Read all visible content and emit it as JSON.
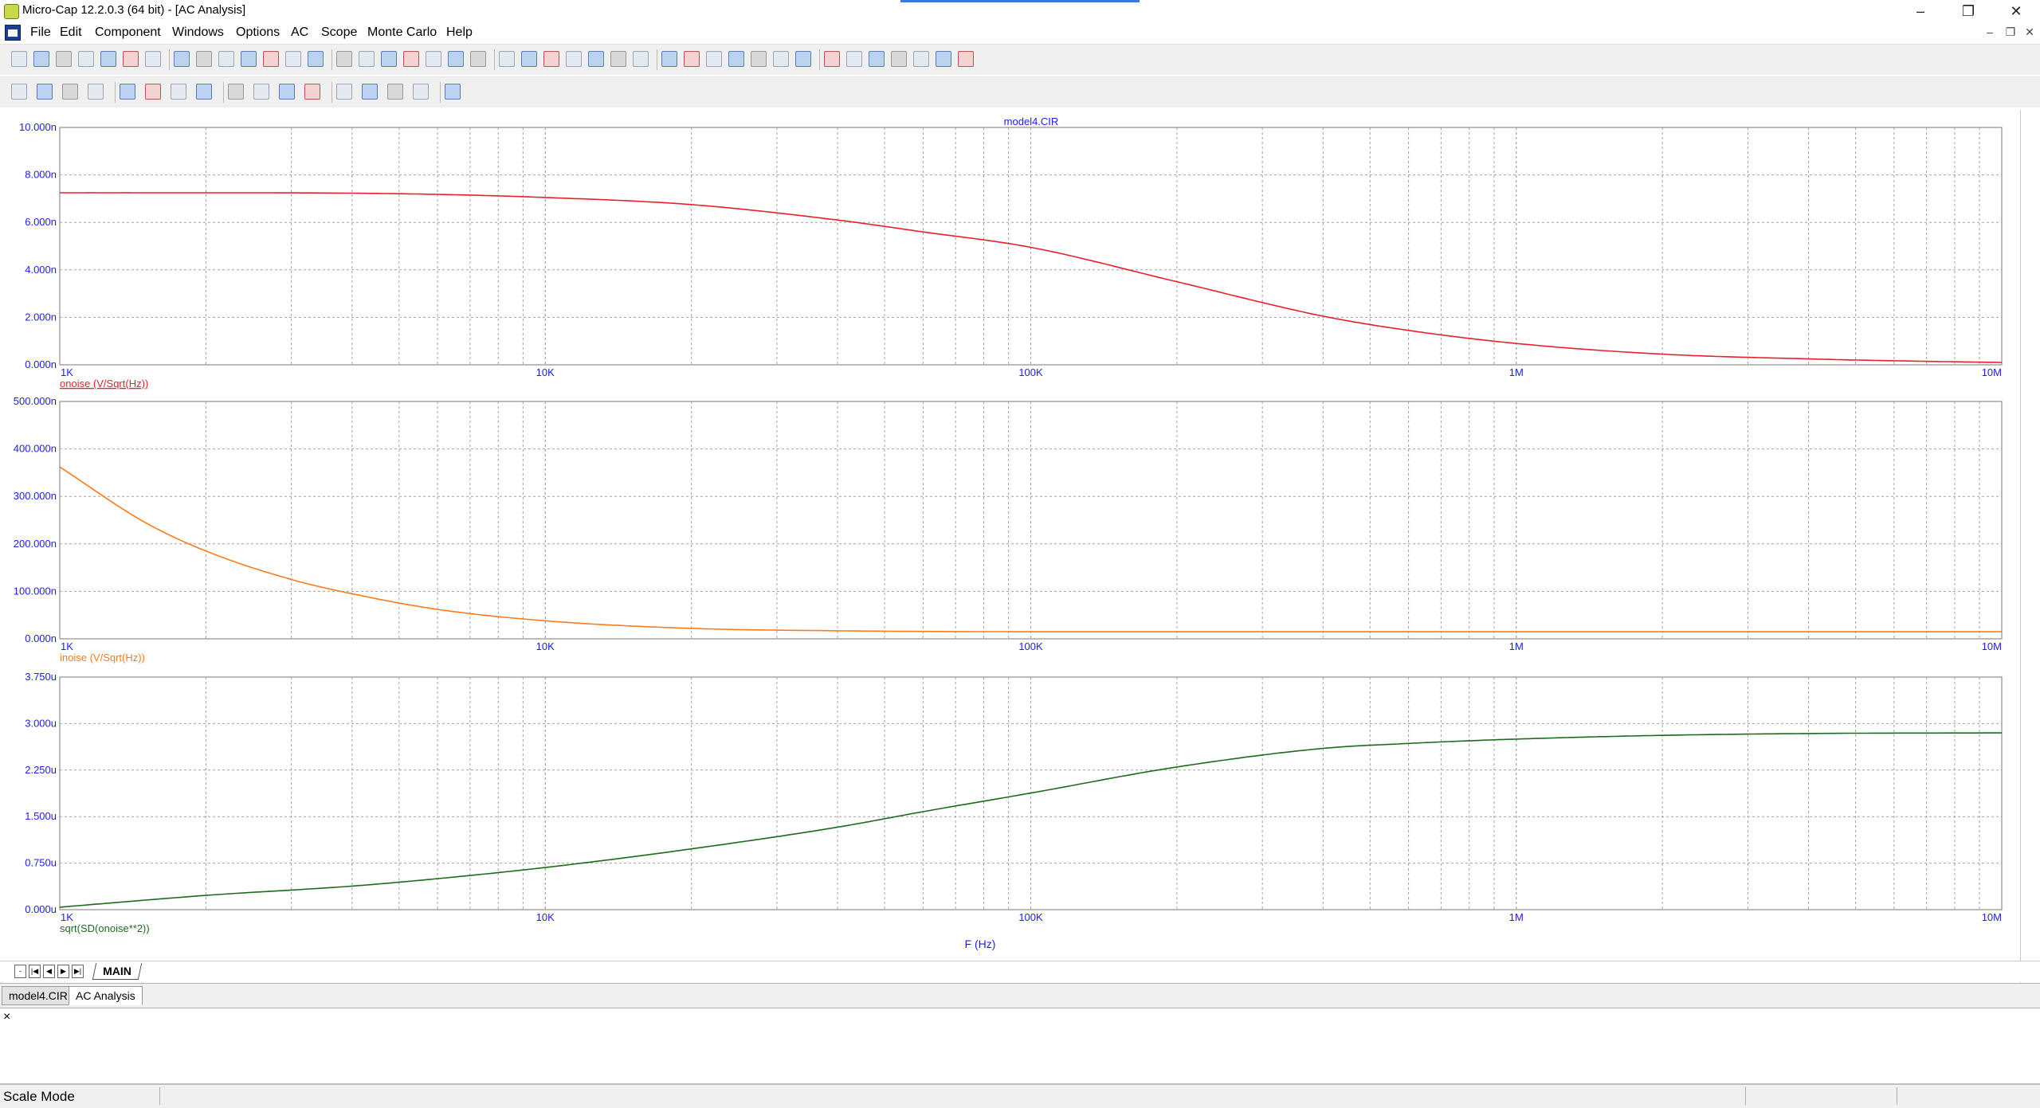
{
  "window": {
    "title": "Micro-Cap 12.2.0.3 (64 bit) - [AC Analysis]",
    "minimize_glyph": "–",
    "restore_glyph": "❐",
    "close_glyph": "✕",
    "mdi_minimize_glyph": "–",
    "mdi_restore_glyph": "❐",
    "mdi_close_glyph": "✕"
  },
  "menu": {
    "items": [
      "File",
      "Edit",
      "Component",
      "Windows",
      "Options",
      "AC",
      "Scope",
      "Monte Carlo",
      "Help"
    ]
  },
  "toolbar1": {
    "icons": [
      "new-file-icon",
      "open-file-icon",
      "save-icon",
      "save-all-icon",
      "print-preview-icon",
      "print-icon",
      "undo-icon",
      "redo-icon",
      "cut-icon",
      "copy-icon",
      "paste-icon",
      "delete-icon",
      "select-all-icon",
      "ground-icon",
      "resistor-icon",
      "capacitor-icon",
      "inductor-icon",
      "diode-icon",
      "battery-icon",
      "transistor-icon",
      "jfet-icon",
      "opamp-icon",
      "source-icon",
      "switch-icon",
      "node-icon",
      "flag-icon",
      "cascade-icon",
      "tile-vertical-icon",
      "tile-horizontal-icon",
      "window-icon",
      "overlap-icon",
      "list-icon",
      "info-icon",
      "model-icon",
      "globe-icon",
      "probe-icon",
      "scope-icon",
      "trace-icon",
      "fft-icon",
      "settings-icon",
      "tools-icon",
      "analysis-icon"
    ]
  },
  "toolbar2": {
    "icons": [
      "select-icon",
      "pan-icon",
      "run-icon",
      "stop-icon",
      "pause-icon",
      "scale-icon",
      "zoom-in-icon",
      "zoom-out-icon",
      "cursor-icon",
      "text-icon",
      "grid-icon",
      "font-icon",
      "color-icon",
      "palette-icon",
      "align-left-icon",
      "align-center-icon",
      "align-right-icon"
    ]
  },
  "plots": {
    "title": "model4.CIR",
    "xlabel": "F (Hz)",
    "x_ticks": [
      "1K",
      "10K",
      "100K",
      "1M",
      "10M"
    ],
    "panel1": {
      "y_ticks": [
        "0.000n",
        "2.000n",
        "4.000n",
        "6.000n",
        "8.000n",
        "10.000n"
      ],
      "trace_label": "onoise (V/Sqrt(Hz))"
    },
    "panel2": {
      "y_ticks": [
        "0.000n",
        "100.000n",
        "200.000n",
        "300.000n",
        "400.000n",
        "500.000n"
      ],
      "trace_label": "inoise (V/Sqrt(Hz))"
    },
    "panel3": {
      "y_ticks": [
        "0.000u",
        "0.750u",
        "1.500u",
        "2.250u",
        "3.000u",
        "3.750u"
      ],
      "trace_label": "sqrt(SD(onoise**2))"
    }
  },
  "chart_data": [
    {
      "type": "line",
      "x_scale": "log",
      "xlim": [
        1000,
        10000000
      ],
      "ylim": [
        0,
        10
      ],
      "y_unit": "n",
      "xlabel": "",
      "ylabel": "",
      "grid": true,
      "color": "#e8202a",
      "series": [
        {
          "name": "onoise (V/Sqrt(Hz))",
          "x": [
            1000,
            2000,
            4000,
            6000,
            10000,
            20000,
            40000,
            60000,
            100000,
            200000,
            400000,
            600000,
            1000000,
            2000000,
            4000000,
            6000000,
            10000000
          ],
          "y": [
            7.25,
            7.25,
            7.23,
            7.18,
            7.05,
            6.75,
            6.1,
            5.6,
            4.95,
            3.5,
            2.05,
            1.45,
            0.9,
            0.45,
            0.25,
            0.17,
            0.1
          ]
        }
      ]
    },
    {
      "type": "line",
      "x_scale": "log",
      "xlim": [
        1000,
        10000000
      ],
      "ylim": [
        0,
        500
      ],
      "y_unit": "n",
      "xlabel": "",
      "ylabel": "",
      "grid": true,
      "color": "#ff7a1a",
      "series": [
        {
          "name": "inoise (V/Sqrt(Hz))",
          "x": [
            1000,
            1500,
            2000,
            3000,
            4000,
            6000,
            10000,
            20000,
            40000,
            100000,
            1000000,
            10000000
          ],
          "y": [
            362,
            245,
            185,
            125,
            95,
            62,
            38,
            22,
            17,
            15,
            15,
            15
          ]
        }
      ]
    },
    {
      "type": "line",
      "x_scale": "log",
      "xlim": [
        1000,
        10000000
      ],
      "ylim": [
        0,
        3.75
      ],
      "y_unit": "u",
      "xlabel": "F (Hz)",
      "ylabel": "",
      "grid": true,
      "color": "#1e6b1e",
      "series": [
        {
          "name": "sqrt(SD(onoise**2))",
          "x": [
            1000,
            2000,
            4000,
            6000,
            10000,
            20000,
            40000,
            60000,
            100000,
            200000,
            400000,
            600000,
            1000000,
            2000000,
            4000000,
            10000000
          ],
          "y": [
            0.04,
            0.23,
            0.38,
            0.5,
            0.68,
            0.98,
            1.33,
            1.58,
            1.88,
            2.3,
            2.6,
            2.68,
            2.75,
            2.81,
            2.84,
            2.85
          ]
        }
      ]
    }
  ],
  "sheet_tabs": {
    "nav": [
      "-",
      "|◀",
      "◀",
      "▶",
      "▶|"
    ],
    "main": "MAIN"
  },
  "doc_tabs": [
    "model4.CIR",
    "AC Analysis"
  ],
  "output": {
    "close_glyph": "×"
  },
  "status": {
    "mode": "Scale Mode"
  },
  "colors": {
    "axis_text": "#1d1df0",
    "grid": "#a0a0a0",
    "frame": "#777777"
  }
}
